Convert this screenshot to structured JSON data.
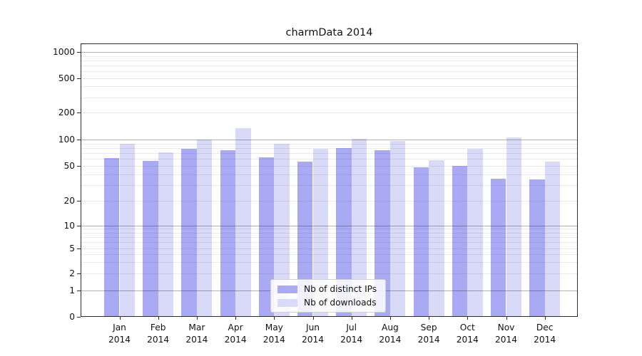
{
  "chart_data": {
    "type": "bar",
    "title": "charmData 2014",
    "categories": [
      "Jan",
      "Feb",
      "Mar",
      "Apr",
      "May",
      "Jun",
      "Jul",
      "Aug",
      "Sep",
      "Oct",
      "Nov",
      "Dec"
    ],
    "category_year": "2014",
    "series": [
      {
        "name": "Nb of distinct IPs",
        "color": "#a9a9f4",
        "values": [
          61,
          57,
          78,
          75,
          63,
          56,
          80,
          76,
          48,
          50,
          36,
          35
        ]
      },
      {
        "name": "Nb of downloads",
        "color": "#d9d9f8",
        "values": [
          90,
          71,
          100,
          135,
          90,
          78,
          101,
          96,
          58,
          79,
          105,
          56
        ]
      }
    ],
    "xlabel": "",
    "ylabel": "",
    "y_axis": {
      "scale": "log-with-zero-baseline",
      "ticks": [
        0,
        1,
        2,
        5,
        10,
        20,
        50,
        100,
        200,
        500,
        1000
      ],
      "major_gridlines": [
        1,
        10,
        100,
        1000
      ],
      "minor_gridlines": [
        2,
        3,
        4,
        5,
        6,
        7,
        8,
        9,
        20,
        30,
        40,
        50,
        60,
        70,
        80,
        90,
        200,
        300,
        400,
        500,
        600,
        700,
        800,
        900
      ]
    },
    "ylim": [
      0,
      1260
    ],
    "grid": true,
    "legend": {
      "position": "lower center (inside plot)",
      "entries": [
        "Nb of distinct IPs",
        "Nb of downloads"
      ]
    }
  }
}
